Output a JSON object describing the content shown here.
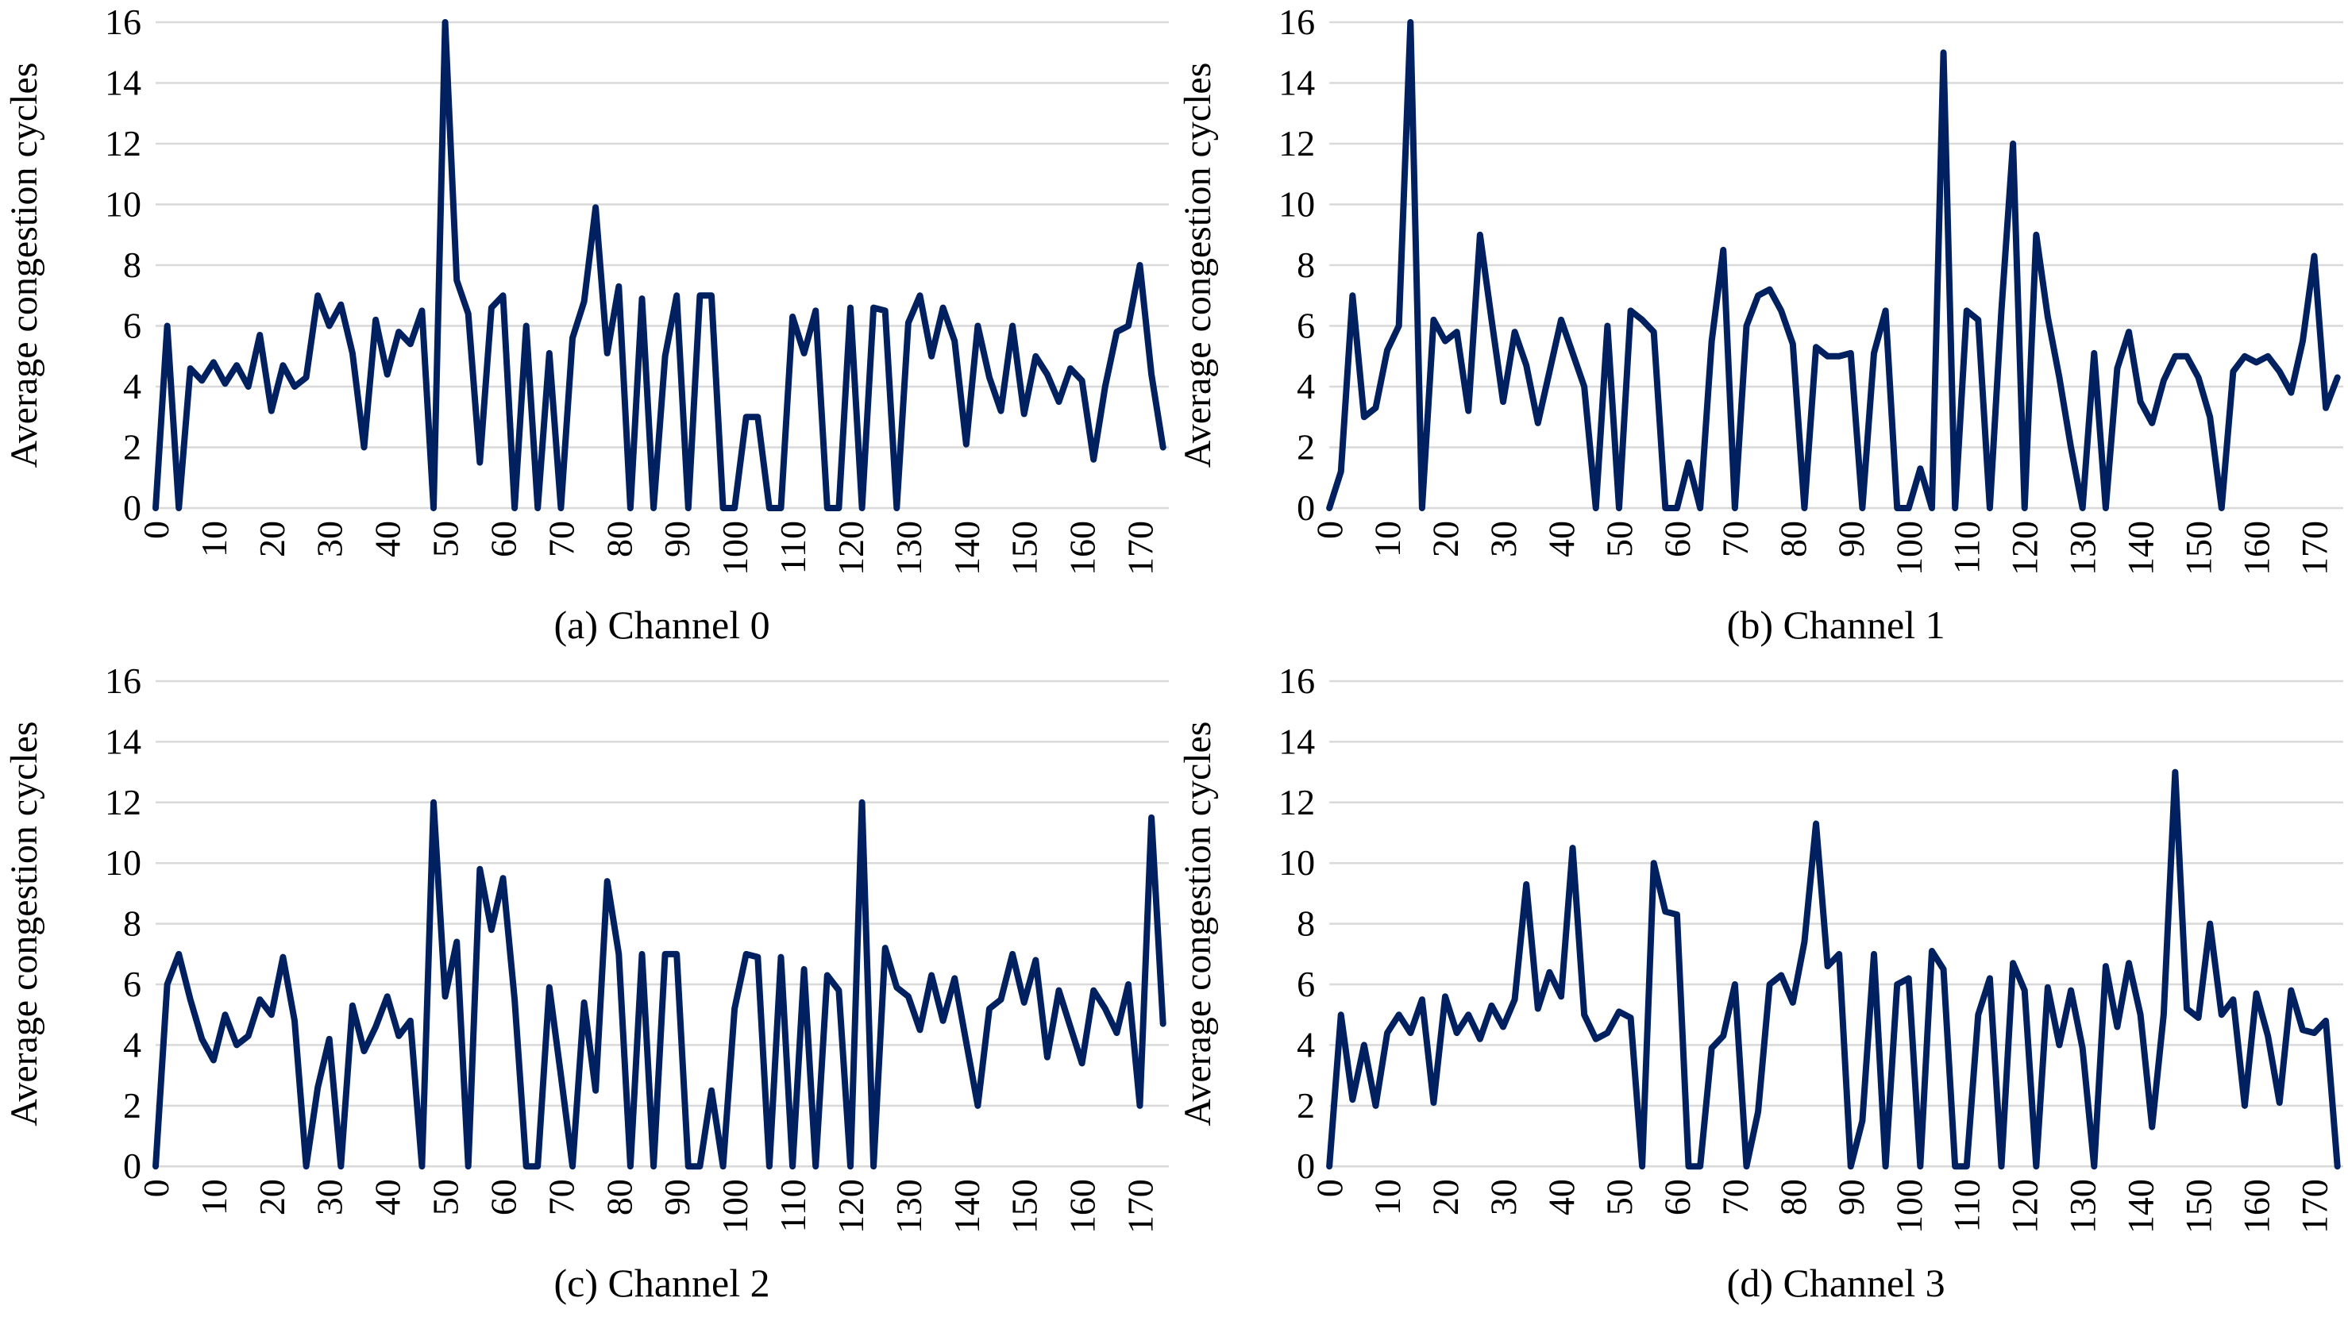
{
  "figure": {
    "background": "#FFFFFF",
    "text_color": "#000000",
    "gridline_color": "#D9D9D9",
    "line_color": "#002060",
    "panel_captions": [
      "(a) Channel 0",
      "(b) Channel 1",
      "(c) Channel 2",
      "(d) Channel 3"
    ]
  },
  "chart_data": [
    {
      "type": "line",
      "title": "(a) Channel 0",
      "caption": "(a) Channel 0",
      "xlabel": "",
      "ylabel": "Average congestion cycles",
      "ylim": [
        0,
        16
      ],
      "ytick_step": 2,
      "xlim": [
        0,
        175
      ],
      "xtick_step": 10,
      "xtick_last": 170,
      "grid": "horizontal-only",
      "legend_position": "none",
      "line_color": "#002060",
      "x_start": 0,
      "x_step": 2,
      "values": [
        0,
        6,
        0,
        4.6,
        4.2,
        4.8,
        4.1,
        4.7,
        4.0,
        5.7,
        3.2,
        4.7,
        4.0,
        4.3,
        7.0,
        6.0,
        6.7,
        5.1,
        2.0,
        6.2,
        4.4,
        5.8,
        5.4,
        6.5,
        0,
        16,
        7.5,
        6.4,
        1.5,
        6.6,
        7.0,
        0,
        6.0,
        0,
        5.1,
        0,
        5.6,
        6.8,
        9.9,
        5.1,
        7.3,
        0,
        6.9,
        0,
        5.0,
        7.0,
        0,
        7.0,
        7.0,
        0,
        0,
        3.0,
        3.0,
        0,
        0,
        6.3,
        5.1,
        6.5,
        0,
        0,
        6.6,
        0,
        6.6,
        6.5,
        0,
        6.1,
        7.0,
        5.0,
        6.6,
        5.5,
        2.1,
        6.0,
        4.3,
        3.2,
        6.0,
        3.1,
        5.0,
        4.4,
        3.5,
        4.6,
        4.2,
        1.6,
        4.0,
        5.8,
        6.0,
        8.0,
        4.4,
        2.0
      ]
    },
    {
      "type": "line",
      "title": "(b) Channel 1",
      "caption": "(b) Channel 1",
      "xlabel": "",
      "ylabel": "Average congestion cycles",
      "ylim": [
        0,
        16
      ],
      "ytick_step": 2,
      "xlim": [
        0,
        175
      ],
      "xtick_step": 10,
      "xtick_last": 170,
      "grid": "horizontal-only",
      "legend_position": "none",
      "line_color": "#002060",
      "x_start": 0,
      "x_step": 2,
      "values": [
        0,
        1.2,
        7.0,
        3.0,
        3.3,
        5.2,
        6.0,
        16,
        0,
        6.2,
        5.5,
        5.8,
        3.2,
        9.0,
        6.2,
        3.5,
        5.8,
        4.7,
        2.8,
        4.5,
        6.2,
        5.1,
        4.0,
        0,
        6.0,
        0,
        6.5,
        6.2,
        5.8,
        0,
        0,
        1.5,
        0,
        5.5,
        8.5,
        0,
        6.0,
        7.0,
        7.2,
        6.5,
        5.4,
        0,
        5.3,
        5.0,
        5.0,
        5.1,
        0,
        5.1,
        6.5,
        0,
        0,
        1.3,
        0,
        15,
        0,
        6.5,
        6.2,
        0,
        6.5,
        12,
        0,
        9.0,
        6.3,
        4.3,
        2.0,
        0,
        5.1,
        0,
        4.6,
        5.8,
        3.5,
        2.8,
        4.2,
        5.0,
        5.0,
        4.3,
        3.0,
        0,
        4.5,
        5.0,
        4.8,
        5.0,
        4.5,
        3.8,
        5.5,
        8.3,
        3.3,
        4.3
      ]
    },
    {
      "type": "line",
      "title": "(c) Channel 2",
      "caption": "(c) Channel 2",
      "xlabel": "",
      "ylabel": "Average congestion cycles",
      "ylim": [
        0,
        16
      ],
      "ytick_step": 2,
      "xlim": [
        0,
        175
      ],
      "xtick_step": 10,
      "xtick_last": 170,
      "grid": "horizontal-only",
      "legend_position": "none",
      "line_color": "#002060",
      "x_start": 0,
      "x_step": 2,
      "values": [
        0,
        6.0,
        7.0,
        5.5,
        4.2,
        3.5,
        5.0,
        4.0,
        4.3,
        5.5,
        5.0,
        6.9,
        4.8,
        0,
        2.6,
        4.2,
        0,
        5.3,
        3.8,
        4.6,
        5.6,
        4.3,
        4.8,
        0,
        12,
        5.6,
        7.4,
        0,
        9.8,
        7.8,
        9.5,
        5.5,
        0,
        0,
        5.9,
        3.0,
        0,
        5.4,
        2.5,
        9.4,
        7.0,
        0,
        7.0,
        0,
        7.0,
        7.0,
        0,
        0,
        2.5,
        0,
        5.2,
        7.0,
        6.9,
        0,
        6.9,
        0,
        6.5,
        0,
        6.3,
        5.8,
        0,
        12,
        0,
        7.2,
        5.9,
        5.6,
        4.5,
        6.3,
        4.8,
        6.2,
        4.1,
        2.0,
        5.2,
        5.5,
        7.0,
        5.4,
        6.8,
        3.6,
        5.8,
        4.6,
        3.4,
        5.8,
        5.2,
        4.4,
        6.0,
        2.0,
        11.5,
        4.7
      ]
    },
    {
      "type": "line",
      "title": "(d) Channel 3",
      "caption": "(d) Channel 3",
      "xlabel": "",
      "ylabel": "Average congestion cycles",
      "ylim": [
        0,
        16
      ],
      "ytick_step": 2,
      "xlim": [
        0,
        175
      ],
      "xtick_step": 10,
      "xtick_last": 170,
      "grid": "horizontal-only",
      "legend_position": "none",
      "line_color": "#002060",
      "x_start": 0,
      "x_step": 2,
      "values": [
        0,
        5.0,
        2.2,
        4.0,
        2.0,
        4.4,
        5.0,
        4.4,
        5.5,
        2.1,
        5.6,
        4.4,
        5.0,
        4.2,
        5.3,
        4.6,
        5.5,
        9.3,
        5.2,
        6.4,
        5.6,
        10.5,
        5.0,
        4.2,
        4.4,
        5.1,
        4.9,
        0,
        10.0,
        8.4,
        8.3,
        0,
        0,
        3.9,
        4.3,
        6.0,
        0,
        1.8,
        6.0,
        6.3,
        5.4,
        7.4,
        11.3,
        6.6,
        7.0,
        0,
        1.5,
        7.0,
        0,
        6.0,
        6.2,
        0,
        7.1,
        6.5,
        0,
        0,
        5.0,
        6.2,
        0,
        6.7,
        5.8,
        0,
        5.9,
        4.0,
        5.8,
        3.9,
        0,
        6.6,
        4.6,
        6.7,
        5.0,
        1.3,
        5.0,
        13.0,
        5.2,
        4.9,
        8.0,
        5.0,
        5.5,
        2.0,
        5.7,
        4.3,
        2.1,
        5.8,
        4.5,
        4.4,
        4.8,
        0
      ]
    }
  ]
}
